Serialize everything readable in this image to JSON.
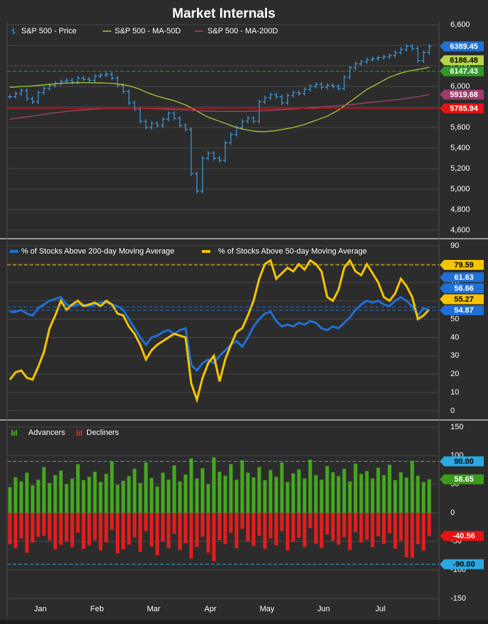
{
  "title": "Market Internals",
  "x_labels": [
    "Jan",
    "Feb",
    "Mar",
    "Apr",
    "May",
    "Jun",
    "Jul"
  ],
  "chart_data": [
    {
      "type": "price",
      "ylim": [
        4600,
        6600
      ],
      "yticks": [
        {
          "value": 4600,
          "label": "4,600"
        },
        {
          "value": 4800,
          "label": "4,800"
        },
        {
          "value": 5000,
          "label": "5,000"
        },
        {
          "value": 5200,
          "label": "5,200"
        },
        {
          "value": 5400,
          "label": "5,400"
        },
        {
          "value": 5600,
          "label": "5,600"
        },
        {
          "value": 5800,
          "label": "5,800"
        },
        {
          "value": 6000,
          "label": "6,000"
        },
        {
          "value": 6200,
          "label": "6,200"
        },
        {
          "value": 6400,
          "label": "6,400"
        },
        {
          "value": 6600,
          "label": "6,600"
        }
      ],
      "grid": true,
      "series": [
        {
          "name": "S&P 500 - Price",
          "color": "#3d9be0",
          "style": "ticks",
          "values": [
            5900,
            5930,
            5960,
            5880,
            5850,
            5940,
            5980,
            6010,
            6030,
            6050,
            6060,
            6040,
            6080,
            6070,
            6060,
            6100,
            6110,
            6120,
            6080,
            6010,
            5950,
            5840,
            5780,
            5660,
            5600,
            5640,
            5620,
            5680,
            5740,
            5690,
            5620,
            5580,
            5150,
            4980,
            5300,
            5350,
            5300,
            5280,
            5450,
            5530,
            5600,
            5660,
            5690,
            5660,
            5850,
            5890,
            5920,
            5900,
            5840,
            5910,
            5940,
            5930,
            5970,
            6000,
            6020,
            5990,
            6010,
            6000,
            5980,
            6090,
            6180,
            6220,
            6240,
            6260,
            6270,
            6280,
            6290,
            6300,
            6330,
            6360,
            6390,
            6370,
            6250,
            6330,
            6389.45
          ]
        },
        {
          "name": "S&P 500 - MA-50D",
          "color": "#a9c83a",
          "style": "line",
          "values": [
            5990,
            5995,
            6000,
            6000,
            6005,
            6010,
            6015,
            6020,
            6025,
            6030,
            6032,
            6034,
            6036,
            6036,
            6036,
            6035,
            6034,
            6032,
            6030,
            6025,
            6018,
            6005,
            5990,
            5970,
            5945,
            5925,
            5905,
            5890,
            5875,
            5860,
            5840,
            5820,
            5790,
            5760,
            5730,
            5700,
            5680,
            5660,
            5640,
            5620,
            5600,
            5585,
            5575,
            5565,
            5560,
            5560,
            5565,
            5570,
            5580,
            5590,
            5600,
            5615,
            5630,
            5650,
            5670,
            5690,
            5710,
            5740,
            5770,
            5810,
            5850,
            5890,
            5930,
            5970,
            6000,
            6030,
            6060,
            6090,
            6110,
            6130,
            6145,
            6155,
            6165,
            6175,
            6186.48
          ]
        },
        {
          "name": "S&P 500 - MA-200D",
          "color": "#a8426f",
          "style": "line",
          "values": [
            5680,
            5688,
            5696,
            5704,
            5712,
            5720,
            5728,
            5736,
            5744,
            5750,
            5756,
            5762,
            5767,
            5772,
            5776,
            5780,
            5783,
            5786,
            5788,
            5789,
            5789,
            5788,
            5787,
            5786,
            5785,
            5784,
            5782,
            5780,
            5778,
            5776,
            5774,
            5772,
            5768,
            5764,
            5762,
            5760,
            5758,
            5757,
            5756,
            5756,
            5756,
            5757,
            5758,
            5760,
            5762,
            5765,
            5768,
            5771,
            5774,
            5777,
            5780,
            5784,
            5788,
            5792,
            5796,
            5800,
            5804,
            5808,
            5812,
            5817,
            5822,
            5828,
            5834,
            5840,
            5846,
            5852,
            5858,
            5864,
            5870,
            5876,
            5884,
            5892,
            5900,
            5910,
            5919.68
          ]
        }
      ],
      "levels": [
        {
          "value": 6389.45,
          "color": "#1f72d4",
          "text_color": "#ffffff"
        },
        {
          "value": 6186.48,
          "color": "#b7d548",
          "text_color": "#000000"
        },
        {
          "value": 6147.43,
          "color": "#2f9a27",
          "text_color": "#ffffff",
          "line": "dashed"
        },
        {
          "value": 5919.68,
          "color": "#9e3c6c",
          "text_color": "#ffffff"
        },
        {
          "value": 5785.94,
          "color": "#e31414",
          "text_color": "#ffffff",
          "line": "solid"
        }
      ]
    },
    {
      "type": "line",
      "ylim": [
        0,
        90
      ],
      "yticks": [
        0,
        10,
        20,
        30,
        40,
        50,
        60,
        70,
        80,
        90
      ],
      "grid": true,
      "series": [
        {
          "name": "% of Stocks Above 200-day Moving Average",
          "color": "#1f6fd6",
          "style": "line",
          "values": [
            54,
            54,
            55,
            53,
            52,
            56,
            58,
            60,
            61,
            62,
            58,
            57,
            58,
            58,
            57,
            58,
            59,
            59,
            58,
            57,
            55,
            50,
            45,
            40,
            36,
            40,
            41,
            43,
            44,
            42,
            44,
            45,
            25,
            22,
            26,
            28,
            26,
            30,
            33,
            36,
            38,
            35,
            40,
            46,
            50,
            53,
            54,
            49,
            46,
            47,
            46,
            48,
            47,
            49,
            48,
            45,
            44,
            46,
            45,
            48,
            51,
            55,
            58,
            60,
            59,
            60,
            58,
            57,
            60,
            62,
            60,
            57,
            52,
            56,
            54.87
          ]
        },
        {
          "name": "% of Stocks Above 50-day Moving Average",
          "color": "#f5c400",
          "style": "line",
          "values": [
            17,
            21,
            22,
            18,
            17,
            24,
            32,
            45,
            52,
            60,
            55,
            58,
            60,
            57,
            58,
            59,
            57,
            60,
            58,
            53,
            52,
            46,
            42,
            36,
            28,
            33,
            36,
            38,
            40,
            42,
            41,
            40,
            15,
            6,
            18,
            26,
            30,
            16,
            28,
            36,
            43,
            45,
            52,
            60,
            72,
            80,
            82,
            72,
            75,
            78,
            76,
            80,
            77,
            82,
            80,
            76,
            62,
            60,
            66,
            78,
            82,
            76,
            74,
            80,
            75,
            70,
            62,
            60,
            64,
            72,
            68,
            62,
            50,
            52,
            55.27
          ]
        }
      ],
      "levels": [
        {
          "value": 79.59,
          "color": "#f5c400",
          "text_color": "#000000",
          "line": "dashed"
        },
        {
          "value": 61.63,
          "color": "#1f6fd6",
          "text_color": "#ffffff"
        },
        {
          "value": 56.66,
          "color": "#1f6fd6",
          "text_color": "#ffffff",
          "line": "dashed"
        },
        {
          "value": 55.27,
          "color": "#f5c400",
          "text_color": "#000000"
        },
        {
          "value": 54.87,
          "color": "#1f6fd6",
          "text_color": "#ffffff",
          "line": "dashed"
        }
      ]
    },
    {
      "type": "bar",
      "ylim": [
        -150,
        150
      ],
      "yticks": [
        -150,
        -100,
        -50,
        0,
        50,
        100,
        150
      ],
      "grid": true,
      "series": [
        {
          "name": "Advancers",
          "color": "#44a81f",
          "values": [
            45,
            62,
            55,
            70,
            48,
            58,
            80,
            52,
            66,
            74,
            50,
            60,
            85,
            57,
            63,
            72,
            54,
            68,
            90,
            49,
            56,
            64,
            77,
            52,
            88,
            61,
            46,
            70,
            58,
            83,
            55,
            67,
            95,
            60,
            78,
            50,
            97,
            72,
            65,
            85,
            58,
            92,
            70,
            62,
            80,
            57,
            75,
            63,
            88,
            54,
            69,
            76,
            60,
            93,
            66,
            58,
            82,
            71,
            64,
            77,
            55,
            86,
            68,
            73,
            60,
            79,
            66,
            84,
            57,
            71,
            62,
            91,
            65,
            54,
            58.65
          ]
        },
        {
          "name": "Decliners",
          "color": "#e81c1c",
          "values": [
            -55,
            -62,
            -45,
            -70,
            -52,
            -42,
            -40,
            -48,
            -64,
            -56,
            -50,
            -60,
            -35,
            -63,
            -57,
            -48,
            -66,
            -52,
            -30,
            -71,
            -64,
            -56,
            -43,
            -68,
            -32,
            -59,
            -74,
            -50,
            -62,
            -37,
            -65,
            -53,
            -80,
            -60,
            -42,
            -70,
            -85,
            -48,
            -55,
            -35,
            -62,
            -28,
            -50,
            -58,
            -40,
            -63,
            -45,
            -57,
            -32,
            -66,
            -51,
            -44,
            -60,
            -27,
            -54,
            -62,
            -38,
            -49,
            -56,
            -43,
            -65,
            -34,
            -52,
            -47,
            -60,
            -41,
            -54,
            -36,
            -63,
            -49,
            -78,
            -79,
            -55,
            -66,
            -40.56
          ]
        }
      ],
      "levels": [
        {
          "value": 90,
          "label": "90.00",
          "color": "#2aa9e2",
          "text_color": "#000000",
          "line": "dashed"
        },
        {
          "value": 58.65,
          "color": "#3c9a1c",
          "text_color": "#ffffff"
        },
        {
          "value": -40.56,
          "color": "#e31414",
          "text_color": "#ffffff"
        },
        {
          "value": -90,
          "label": "-90.00",
          "color": "#2aa9e2",
          "text_color": "#000000",
          "line": "dashed"
        }
      ]
    }
  ]
}
